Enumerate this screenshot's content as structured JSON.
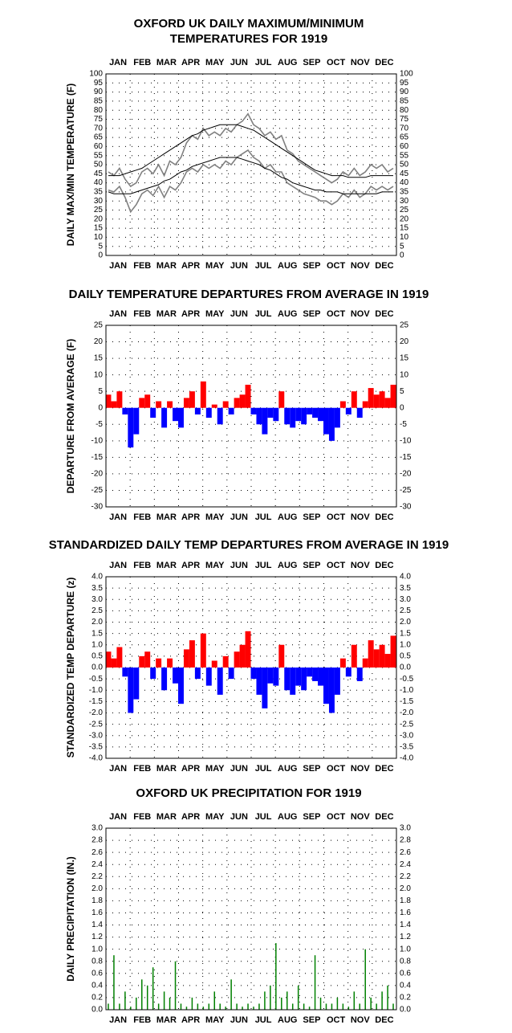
{
  "chart_data": [
    {
      "type": "line",
      "title": [
        "OXFORD UK DAILY MAXIMUM/MINIMUM",
        "TEMPERATURES FOR 1919"
      ],
      "y_label": "DAILY MAX/MIN TEMPERATURE (F)",
      "categories": [
        "JAN",
        "FEB",
        "MAR",
        "APR",
        "MAY",
        "JUN",
        "JUL",
        "AUG",
        "SEP",
        "OCT",
        "NOV",
        "DEC"
      ],
      "xlim": [
        1,
        365
      ],
      "x": [
        4,
        11,
        18,
        25,
        32,
        39,
        46,
        53,
        60,
        67,
        74,
        81,
        88,
        95,
        102,
        109,
        116,
        123,
        130,
        137,
        144,
        151,
        158,
        165,
        172,
        179,
        186,
        193,
        200,
        207,
        214,
        221,
        228,
        235,
        242,
        249,
        256,
        263,
        270,
        277,
        284,
        291,
        298,
        305,
        312,
        319,
        326,
        333,
        340,
        347,
        354,
        361
      ],
      "series": [
        {
          "color": "#808080",
          "values": [
            46,
            44,
            48,
            42,
            38,
            40,
            46,
            48,
            45,
            50,
            44,
            52,
            50,
            54,
            62,
            66,
            64,
            70,
            66,
            68,
            66,
            70,
            68,
            72,
            74,
            78,
            72,
            70,
            66,
            68,
            64,
            66,
            58,
            56,
            52,
            50,
            48,
            46,
            44,
            42,
            40,
            42,
            46,
            44,
            48,
            44,
            46,
            50,
            48,
            50,
            46,
            48
          ]
        },
        {
          "color": "#808080",
          "values": [
            36,
            35,
            38,
            32,
            24,
            28,
            34,
            36,
            33,
            38,
            32,
            38,
            36,
            40,
            46,
            48,
            46,
            50,
            48,
            50,
            48,
            52,
            50,
            54,
            56,
            58,
            54,
            52,
            48,
            50,
            46,
            46,
            40,
            38,
            36,
            34,
            33,
            32,
            30,
            30,
            28,
            30,
            34,
            32,
            36,
            32,
            34,
            38,
            36,
            38,
            36,
            38
          ]
        },
        {
          "color": "#000000",
          "values": [
            44,
            44,
            44,
            45,
            46,
            47,
            48,
            50,
            52,
            54,
            56,
            58,
            60,
            62,
            64,
            66,
            67,
            69,
            70,
            71,
            72,
            72,
            72,
            72,
            71,
            70,
            69,
            67,
            65,
            63,
            61,
            59,
            57,
            55,
            53,
            51,
            49,
            47,
            46,
            45,
            44,
            44,
            44,
            43,
            43,
            43,
            43,
            44,
            44,
            44,
            44,
            44
          ]
        },
        {
          "color": "#000000",
          "values": [
            35,
            34,
            34,
            34,
            34,
            35,
            36,
            37,
            38,
            39,
            41,
            42,
            44,
            46,
            47,
            49,
            50,
            51,
            52,
            53,
            54,
            54,
            54,
            54,
            53,
            52,
            51,
            50,
            48,
            47,
            45,
            43,
            42,
            40,
            39,
            38,
            37,
            36,
            36,
            35,
            35,
            35,
            34,
            34,
            34,
            34,
            34,
            34,
            34,
            35,
            35,
            35
          ]
        }
      ],
      "ylim": [
        0,
        100
      ],
      "yticks": [
        0,
        5,
        10,
        15,
        20,
        25,
        30,
        35,
        40,
        45,
        50,
        55,
        60,
        65,
        70,
        75,
        80,
        85,
        90,
        95,
        100
      ],
      "grid": true
    },
    {
      "type": "bar",
      "title": [
        "DAILY TEMPERATURE DEPARTURES FROM AVERAGE IN 1919"
      ],
      "y_label": "DEPARTURE FROM AVERAGE (F)",
      "categories": [
        "JAN",
        "FEB",
        "MAR",
        "APR",
        "MAY",
        "JUN",
        "JUL",
        "AUG",
        "SEP",
        "OCT",
        "NOV",
        "DEC"
      ],
      "xlim": [
        1,
        365
      ],
      "x": [
        4,
        11,
        18,
        25,
        32,
        39,
        46,
        53,
        60,
        67,
        74,
        81,
        88,
        95,
        102,
        109,
        116,
        123,
        130,
        137,
        144,
        151,
        158,
        165,
        172,
        179,
        186,
        193,
        200,
        207,
        214,
        221,
        228,
        235,
        242,
        249,
        256,
        263,
        270,
        277,
        284,
        291,
        298,
        305,
        312,
        319,
        326,
        333,
        340,
        347,
        354,
        361
      ],
      "values": [
        4,
        2,
        5,
        -2,
        -12,
        -8,
        3,
        4,
        -3,
        2,
        -6,
        2,
        -4,
        -6,
        3,
        5,
        -2,
        8,
        -3,
        1,
        -5,
        2,
        -2,
        3,
        4,
        7,
        -2,
        -5,
        -8,
        -3,
        -4,
        5,
        -5,
        -6,
        -4,
        -5,
        -2,
        -3,
        -4,
        -8,
        -10,
        -6,
        2,
        -2,
        5,
        -3,
        2,
        6,
        4,
        5,
        3,
        7
      ],
      "positive_color": "#ff0000",
      "negative_color": "#0000ff",
      "ylim": [
        -30,
        25
      ],
      "yticks": [
        -30,
        -25,
        -20,
        -15,
        -10,
        -5,
        0,
        5,
        10,
        15,
        20,
        25
      ],
      "grid": true
    },
    {
      "type": "bar",
      "title": [
        "STANDARDIZED DAILY TEMP DEPARTURES FROM AVERAGE IN 1919"
      ],
      "y_label": "STANDARDIZED TEMP DEPARTURE (z)",
      "categories": [
        "JAN",
        "FEB",
        "MAR",
        "APR",
        "MAY",
        "JUN",
        "JUL",
        "AUG",
        "SEP",
        "OCT",
        "NOV",
        "DEC"
      ],
      "xlim": [
        1,
        365
      ],
      "x": [
        4,
        11,
        18,
        25,
        32,
        39,
        46,
        53,
        60,
        67,
        74,
        81,
        88,
        95,
        102,
        109,
        116,
        123,
        130,
        137,
        144,
        151,
        158,
        165,
        172,
        179,
        186,
        193,
        200,
        207,
        214,
        221,
        228,
        235,
        242,
        249,
        256,
        263,
        270,
        277,
        284,
        291,
        298,
        305,
        312,
        319,
        326,
        333,
        340,
        347,
        354,
        361
      ],
      "values": [
        0.7,
        0.4,
        0.9,
        -0.4,
        -2.0,
        -1.4,
        0.5,
        0.7,
        -0.5,
        0.4,
        -1.0,
        0.4,
        -0.7,
        -1.6,
        0.8,
        1.2,
        -0.5,
        1.5,
        -0.8,
        0.3,
        -1.2,
        0.5,
        -0.5,
        0.7,
        1.0,
        1.6,
        -0.5,
        -1.2,
        -1.8,
        -0.7,
        -0.8,
        1.0,
        -1.0,
        -1.2,
        -0.8,
        -1.0,
        -0.4,
        -0.6,
        -0.8,
        -1.6,
        -2.0,
        -1.2,
        0.4,
        -0.4,
        1.0,
        -0.6,
        0.4,
        1.2,
        0.8,
        1.0,
        0.6,
        1.4
      ],
      "positive_color": "#ff0000",
      "negative_color": "#0000ff",
      "ylim": [
        -4,
        4
      ],
      "yticks": [
        {
          "value": -4,
          "label": "-4.0"
        },
        -3.5,
        {
          "value": -3,
          "label": "-3.0"
        },
        -2.5,
        {
          "value": -2,
          "label": "-2.0"
        },
        -1.5,
        {
          "value": -1,
          "label": "-1.0"
        },
        -0.5,
        {
          "value": 0,
          "label": "0.0"
        },
        0.5,
        {
          "value": 1,
          "label": "1.0"
        },
        1.5,
        {
          "value": 2,
          "label": "2.0"
        },
        2.5,
        {
          "value": 3,
          "label": "3.0"
        },
        3.5,
        {
          "value": 4,
          "label": "4.0"
        }
      ],
      "grid": true
    },
    {
      "type": "bar",
      "title": [
        "OXFORD UK PRECIPITATION FOR 1919"
      ],
      "y_label": "DAILY PRECIPITATION (IN.)",
      "categories": [
        "JAN",
        "FEB",
        "MAR",
        "APR",
        "MAY",
        "JUN",
        "JUL",
        "AUG",
        "SEP",
        "OCT",
        "NOV",
        "DEC"
      ],
      "xlim": [
        1,
        365
      ],
      "x": [
        4,
        11,
        18,
        25,
        32,
        39,
        46,
        53,
        60,
        67,
        74,
        81,
        88,
        95,
        102,
        109,
        116,
        123,
        130,
        137,
        144,
        151,
        158,
        165,
        172,
        179,
        186,
        193,
        200,
        207,
        214,
        221,
        228,
        235,
        242,
        249,
        256,
        263,
        270,
        277,
        284,
        291,
        298,
        305,
        312,
        319,
        326,
        333,
        340,
        347,
        354,
        361
      ],
      "values": [
        0.1,
        0.9,
        0.1,
        0.3,
        0.05,
        0.2,
        0.5,
        0.4,
        0.7,
        0.1,
        0.3,
        0.2,
        0.8,
        0.1,
        0.05,
        0.2,
        0.1,
        0.05,
        0.1,
        0.3,
        0.1,
        0.05,
        0.5,
        0.1,
        0.05,
        0.1,
        0.05,
        0.1,
        0.3,
        0.4,
        1.1,
        0.2,
        0.3,
        0.1,
        0.4,
        0.1,
        0.05,
        0.9,
        0.2,
        0.1,
        0.1,
        0.2,
        0.1,
        0.05,
        0.3,
        0.1,
        1.0,
        0.2,
        0.1,
        0.3,
        0.4,
        0.1
      ],
      "color": "#008000",
      "bar_style": "thin",
      "ylim": [
        0,
        3
      ],
      "yticks": [
        {
          "value": 0,
          "label": "0.0"
        },
        0.2,
        0.4,
        0.6,
        0.8,
        {
          "value": 1,
          "label": "1.0"
        },
        1.2,
        1.4,
        1.6,
        1.8,
        {
          "value": 2,
          "label": "2.0"
        },
        2.2,
        2.4,
        2.6,
        2.8,
        {
          "value": 3,
          "label": "3.0"
        }
      ],
      "grid": true
    }
  ]
}
